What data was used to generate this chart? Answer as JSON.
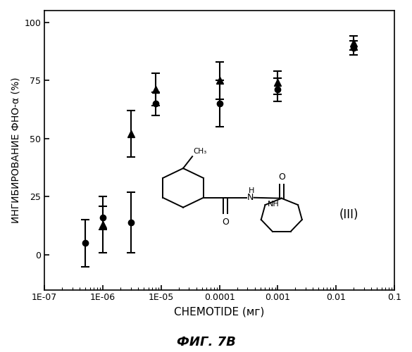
{
  "title": "",
  "xlabel": "CHEMOTIDE (мг)",
  "ylabel": "ИНГИБИРОВАНИЕ ФНО-α (%)",
  "caption": "ФИГ. 7В",
  "ylim": [
    -15,
    105
  ],
  "yticks": [
    0,
    25,
    50,
    75,
    100
  ],
  "series1": {
    "x": [
      5e-07,
      1e-06,
      3e-06,
      8e-06,
      0.0001,
      0.001,
      0.02
    ],
    "y": [
      5,
      16,
      14,
      65,
      65,
      71,
      89
    ],
    "yerr": [
      10,
      5,
      13,
      5,
      10,
      5,
      3
    ],
    "marker": "o"
  },
  "series2": {
    "x": [
      1e-06,
      3e-06,
      8e-06,
      0.0001,
      0.001,
      0.02
    ],
    "y": [
      13,
      52,
      71,
      75,
      74,
      91
    ],
    "yerr": [
      12,
      10,
      7,
      8,
      5,
      3
    ],
    "marker": "^"
  },
  "background_color": "#ffffff",
  "annotation_III": "(III)",
  "xtick_labels": [
    "1E-07",
    "1E-06",
    "1E-05",
    "0.0001",
    "0.001",
    "0.01",
    "0.1"
  ]
}
